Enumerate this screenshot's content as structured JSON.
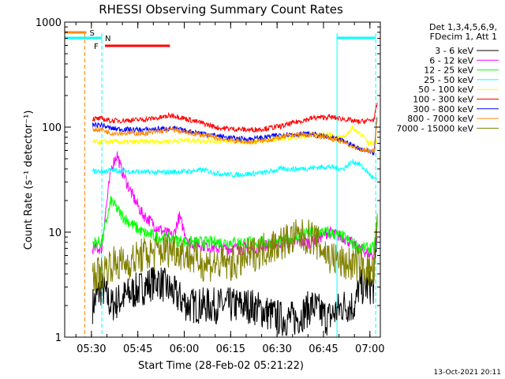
{
  "chart_data": {
    "type": "line",
    "title": "RHESSI Observing Summary Count Rates",
    "xlabel": "Start Time (28-Feb-02 05:21:22)",
    "ylabel": "Count Rate (s⁻¹ detector⁻¹)",
    "yscale": "log",
    "ylim": [
      1,
      1000
    ],
    "xlim_minutes_after_0521": [
      0,
      102
    ],
    "x_tick_labels": [
      "05:30",
      "05:45",
      "06:00",
      "06:15",
      "06:30",
      "06:45",
      "07:00"
    ],
    "y_tick_labels": [
      "1",
      "10",
      "100",
      "1000"
    ],
    "footer": "13-Oct-2021 20:11",
    "legend_header": [
      "Det 1,3,4,5,6,9,",
      "FDecim 1, Att 1"
    ],
    "series": [
      {
        "name": "3 - 6 keV",
        "color": "#000000",
        "t": [
          9,
          12,
          15,
          20,
          30,
          40,
          50,
          60,
          70,
          75,
          80,
          85,
          90,
          94,
          95,
          100,
          101
        ],
        "v": [
          2,
          3,
          2,
          2.5,
          3.5,
          2,
          2,
          2,
          1.5,
          1.5,
          2,
          1.5,
          2,
          2,
          3,
          3,
          13
        ]
      },
      {
        "name": "6 - 12 keV",
        "color": "#ff00ff",
        "t": [
          9,
          12,
          13,
          15,
          16,
          17,
          18,
          20,
          22,
          25,
          30,
          35,
          37,
          40,
          50,
          60,
          70,
          80,
          85,
          90,
          95,
          100,
          101
        ],
        "v": [
          7,
          7,
          14,
          40,
          48,
          55,
          42,
          30,
          22,
          15,
          11,
          9,
          14,
          8,
          7,
          7,
          8,
          8,
          10,
          9,
          7,
          6,
          12
        ]
      },
      {
        "name": "12 - 25 keV",
        "color": "#00ff00",
        "t": [
          9,
          12,
          13,
          15,
          18,
          20,
          25,
          30,
          40,
          50,
          60,
          70,
          75,
          80,
          85,
          90,
          95,
          100,
          101
        ],
        "v": [
          8,
          8,
          11,
          20,
          15,
          13,
          10,
          9,
          8,
          8,
          8,
          8,
          9,
          10,
          10,
          9,
          7,
          7,
          14
        ]
      },
      {
        "name": "25 - 50 keV",
        "color": "#00ffff",
        "t": [
          9,
          12,
          13,
          15,
          20,
          30,
          40,
          45,
          50,
          55,
          60,
          65,
          70,
          75,
          80,
          85,
          90,
          93,
          95,
          98,
          100,
          101
        ],
        "v": [
          38,
          38,
          38,
          39,
          38,
          37,
          38,
          39,
          36,
          35,
          36,
          37,
          40,
          40,
          41,
          42,
          40,
          47,
          45,
          37,
          32,
          32
        ]
      },
      {
        "name": "50 - 100 keV",
        "color": "#ffff00",
        "t": [
          9,
          12,
          13,
          20,
          30,
          40,
          50,
          60,
          70,
          80,
          85,
          88,
          90,
          93,
          96,
          98,
          100,
          101
        ],
        "v": [
          72,
          72,
          73,
          72,
          73,
          75,
          74,
          72,
          78,
          83,
          86,
          80,
          80,
          98,
          85,
          70,
          72,
          75
        ]
      },
      {
        "name": "100 - 300 keV",
        "color": "#ff0000",
        "t": [
          9,
          12,
          13,
          15,
          20,
          25,
          30,
          35,
          40,
          45,
          50,
          55,
          60,
          65,
          70,
          75,
          80,
          85,
          90,
          95,
          100,
          101
        ],
        "v": [
          120,
          120,
          118,
          115,
          116,
          118,
          122,
          130,
          118,
          108,
          98,
          96,
          94,
          97,
          102,
          112,
          122,
          125,
          120,
          112,
          118,
          170
        ]
      },
      {
        "name": "300 - 800 keV",
        "color": "#0000ff",
        "t": [
          9,
          12,
          13,
          15,
          20,
          25,
          30,
          35,
          40,
          45,
          50,
          55,
          60,
          65,
          70,
          75,
          80,
          85,
          90,
          95,
          100,
          101
        ],
        "v": [
          105,
          105,
          102,
          97,
          95,
          94,
          96,
          97,
          91,
          87,
          82,
          78,
          77,
          80,
          85,
          86,
          86,
          80,
          74,
          63,
          57,
          130
        ]
      },
      {
        "name": "800 - 7000 keV",
        "color": "#ff8800",
        "t": [
          9,
          12,
          13,
          15,
          20,
          25,
          30,
          35,
          40,
          45,
          50,
          55,
          60,
          65,
          70,
          75,
          80,
          85,
          90,
          95,
          100,
          101
        ],
        "v": [
          95,
          95,
          92,
          88,
          88,
          87,
          90,
          95,
          88,
          84,
          78,
          74,
          72,
          75,
          80,
          85,
          84,
          80,
          72,
          62,
          58,
          120
        ]
      },
      {
        "name": "7000 - 15000 keV",
        "color": "#808000",
        "t": [
          9,
          12,
          13,
          15,
          20,
          25,
          30,
          35,
          40,
          45,
          50,
          55,
          60,
          65,
          70,
          75,
          80,
          85,
          90,
          95,
          100,
          101
        ],
        "v": [
          4,
          4,
          4.5,
          5,
          5,
          6,
          6.5,
          7,
          6,
          5,
          5,
          5,
          6,
          7,
          8,
          9,
          9,
          6,
          5,
          5,
          4,
          12
        ]
      }
    ],
    "attenuator_bars": [
      {
        "label": "S",
        "color": "#ff8800",
        "t_start": 0,
        "t_end": 7
      },
      {
        "label": "N",
        "color": "#00ffff",
        "t_start": 0,
        "t_end": 12
      },
      {
        "label": "N",
        "color": "#00ffff",
        "t_start": 88,
        "t_end": 100.5
      },
      {
        "label": "F",
        "color": "#ff0000",
        "t_start": 13,
        "t_end": 34
      }
    ],
    "vertical_markers": [
      {
        "t": 6.5,
        "color": "#ff8800",
        "style": "dashed"
      },
      {
        "t": 12,
        "color": "#00ffff",
        "style": "dashed"
      },
      {
        "t": 88,
        "color": "#00ffff",
        "style": "solid"
      },
      {
        "t": 100.5,
        "color": "#00ffff",
        "style": "dashed"
      }
    ]
  }
}
